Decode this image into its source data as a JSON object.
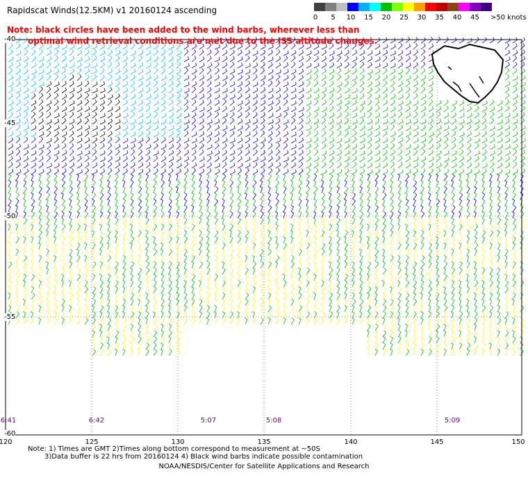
{
  "title": "Rapidscat Winds(12.5KM) v1 20160124 ascending",
  "note_line1": "Note: black circles have been added to the wind barbs, wherever less than",
  "note_line2": "optimal wind retrieval conditions are met due to the ISS altitude changes.",
  "scale": {
    "labels": [
      "0",
      "5",
      "10",
      "15",
      "20",
      "25",
      "30",
      "35",
      "40",
      "45",
      ">50 knots"
    ],
    "colors": [
      "#404040",
      "#808080",
      "#c0c0c0",
      "#0000ff",
      "#00b0ff",
      "#00ffff",
      "#00c000",
      "#80ff00",
      "#ffff00",
      "#ffa000",
      "#ff0000",
      "#c00000",
      "#8b4513",
      "#ff00ff",
      "#8000c0",
      "#400080"
    ]
  },
  "lat_labels": [
    "-40",
    "-45",
    "-50",
    "-55",
    "-60"
  ],
  "lon_labels": [
    "120",
    "125",
    "130",
    "135",
    "140",
    "145",
    "150"
  ],
  "time_labels": [
    "6:41",
    "6:42",
    "5:07",
    "5:08",
    "5:09"
  ],
  "footnote_line1": "Note: 1) Times are GMT 2)Times along bottom correspond to measurement at ~50S",
  "footnote_line2": "3)Data buffer is 22 hrs from 20160124 4) Black wind barbs indicate possible contamination",
  "credit": "NOAA/NESDIS/Center for Satellite Applications and Research"
}
